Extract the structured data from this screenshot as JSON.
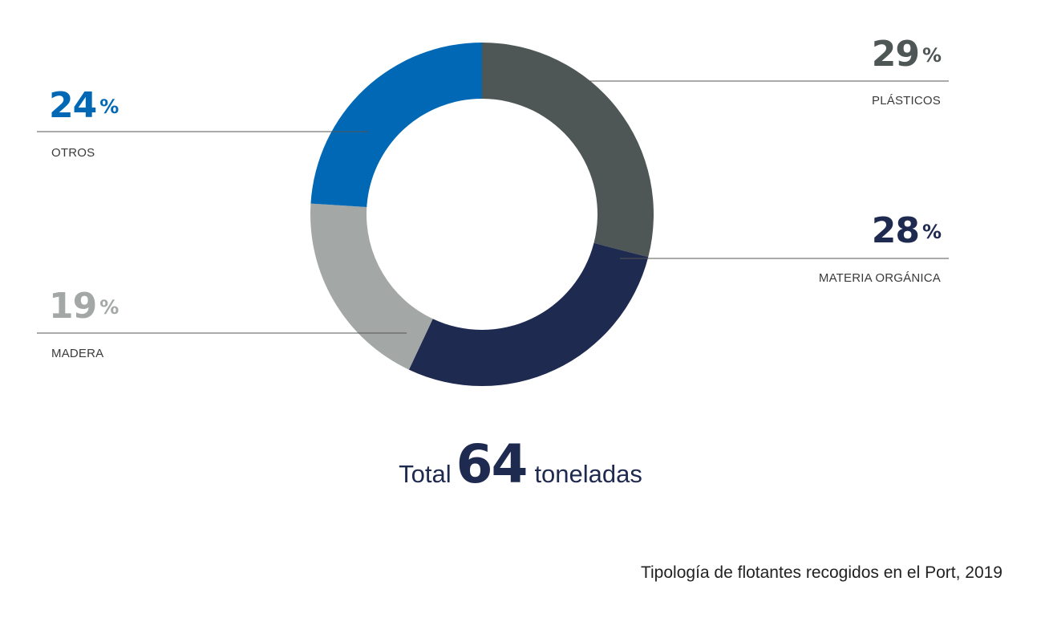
{
  "chart_data": {
    "type": "pie",
    "series": [
      {
        "values": [
          {
            "label": "PLÁSTICOS",
            "percent_text": "29",
            "value": 29,
            "color": "#4f5656"
          },
          {
            "label": "MATERIA ORGÁNICA",
            "percent_text": "28",
            "value": 28,
            "color": "#1f2a50"
          },
          {
            "label": "MADERA",
            "percent_text": "19",
            "value": 19,
            "color": "#a3a8a7"
          },
          {
            "label": "OTROS",
            "percent_text": "24",
            "value": 24,
            "color": "#0068b5"
          }
        ]
      }
    ],
    "percent_sign": "%",
    "total": {
      "prefix": "Total",
      "value": "64",
      "suffix": "toneladas"
    },
    "caption": "Tipología de flotantes recogidos en el Port, 2019",
    "donut": true,
    "leader_line_color": "#555555"
  }
}
